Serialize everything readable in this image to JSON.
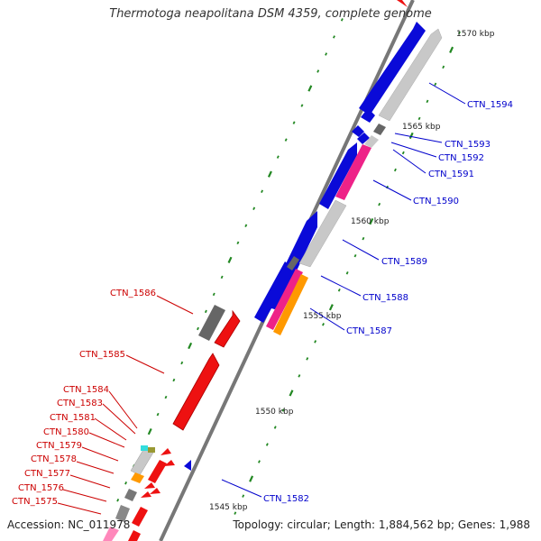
{
  "title": "Thermotoga neapolitana DSM 4359, complete genome",
  "accession": "Accession: NC_011978",
  "topology": "Topology: circular; Length: 1,884,562 bp; Genes: 1,988",
  "colors": {
    "forward_gene": "#0a0ad8",
    "reverse_gene": "#ee1111",
    "label_forward": "#0000cc",
    "label_reverse": "#cc0000",
    "magenta": "#ee2288",
    "orange": "#ff9900",
    "cyan": "#33dddd",
    "grey_dark": "#666666",
    "grey_light": "#c8c8c8",
    "tick": "#228822"
  },
  "scale_labels": [
    "1570 kbp",
    "1565 kbp",
    "1560 kbp",
    "1555 kbp",
    "1550 kbp",
    "1545 kbp"
  ],
  "gene_labels": {
    "forward": [
      "CTN_1594",
      "CTN_1593",
      "CTN_1592",
      "CTN_1591",
      "CTN_1590",
      "CTN_1589",
      "CTN_1588",
      "CTN_1587",
      "CTN_1582"
    ],
    "reverse": [
      "CTN_1586",
      "CTN_1585",
      "CTN_1584",
      "CTN_1583",
      "CTN_1581",
      "CTN_1580",
      "CTN_1579",
      "CTN_1578",
      "CTN_1577",
      "CTN_1576",
      "CTN_1575"
    ]
  }
}
